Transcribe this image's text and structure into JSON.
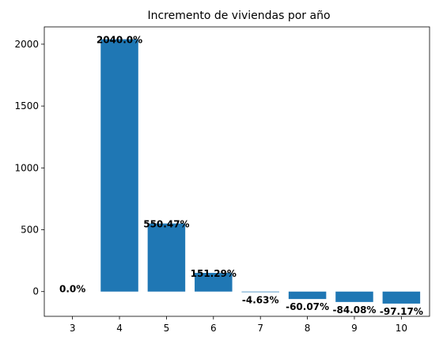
{
  "chart_data": {
    "type": "bar",
    "title": "Incremento de viviendas por año",
    "xlabel": "",
    "ylabel": "",
    "categories": [
      "3",
      "4",
      "5",
      "6",
      "7",
      "8",
      "9",
      "10"
    ],
    "x": [
      3,
      4,
      5,
      6,
      7,
      8,
      9,
      10
    ],
    "values": [
      0.0,
      2040.0,
      550.47,
      151.29,
      -4.63,
      -60.07,
      -84.08,
      -97.17
    ],
    "data_labels": [
      "0.0%",
      "2040.0%",
      "550.47%",
      "151.29%",
      "-4.63%",
      "-60.07%",
      "-84.08%",
      "-97.17%"
    ],
    "ylim": [
      -200,
      2140
    ],
    "xlim": [
      2.4,
      10.6
    ],
    "yticks": [
      0,
      500,
      1000,
      1500,
      2000
    ],
    "ytick_labels": [
      "0",
      "500",
      "1000",
      "1500",
      "2000"
    ],
    "grid": false,
    "legend": "none",
    "colors": {
      "bar": "#1f77b4",
      "axis": "#000000",
      "text": "#000000"
    }
  }
}
